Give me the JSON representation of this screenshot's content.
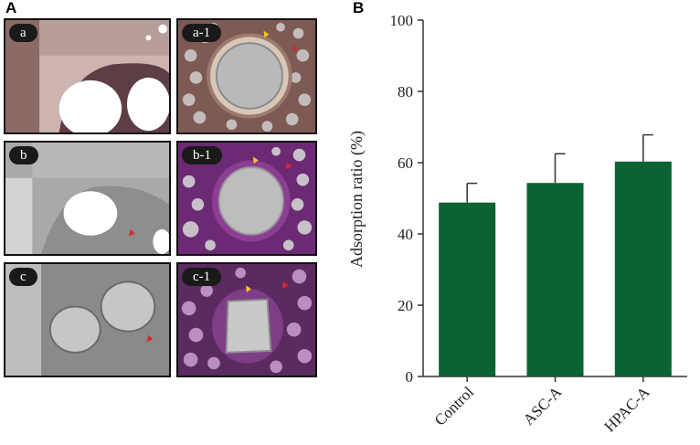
{
  "panels": {
    "a_letter": "A",
    "b_letter": "B"
  },
  "micrographs": [
    {
      "id": "a",
      "label": "a",
      "stain": "brown"
    },
    {
      "id": "a1",
      "label": "a-1",
      "stain": "brown"
    },
    {
      "id": "b",
      "label": "b",
      "stain": "gray"
    },
    {
      "id": "b1",
      "label": "b-1",
      "stain": "purple"
    },
    {
      "id": "c",
      "label": "c",
      "stain": "gray"
    },
    {
      "id": "c1",
      "label": "c-1",
      "stain": "purple"
    }
  ],
  "colors": {
    "bar": "#0b6232",
    "axis": "#333333",
    "arrow_yellow": "#f5c518",
    "arrow_red": "#d9262b"
  },
  "chart_data": {
    "type": "bar",
    "categories": [
      "Control",
      "ASC-A",
      "HPAC-A"
    ],
    "values": [
      48.8,
      54.3,
      60.3
    ],
    "errors": [
      5.4,
      8.2,
      7.5
    ],
    "ylabel": "Adsorption ratio (%)",
    "xlabel": "",
    "ylim": [
      0,
      100
    ],
    "yticks": [
      0,
      20,
      40,
      60,
      80,
      100
    ],
    "grid": false
  }
}
